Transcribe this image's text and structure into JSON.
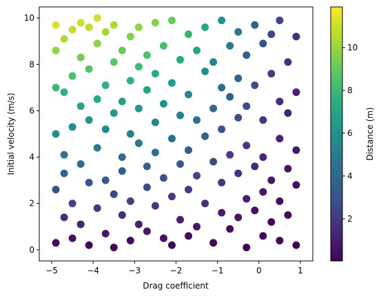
{
  "chart_data": {
    "type": "scatter",
    "x_label": "Drag coefficient",
    "y_label": "Initial velocity (m/s)",
    "colorbar_label": "Distance (m)",
    "colormap": "viridis",
    "xlim": [
      -5.3,
      1.3
    ],
    "ylim": [
      -0.48,
      10.48
    ],
    "clim": [
      0.03,
      11.9
    ],
    "xticks": [
      {
        "value": -5,
        "label": "−5"
      },
      {
        "value": -4,
        "label": "−4"
      },
      {
        "value": -3,
        "label": "−3"
      },
      {
        "value": -2,
        "label": "−2"
      },
      {
        "value": -1,
        "label": "−1"
      },
      0,
      1
    ],
    "yticks": [
      0,
      2,
      4,
      6,
      8,
      10
    ],
    "cticks": [
      2,
      4,
      6,
      8,
      10
    ],
    "series": [
      {
        "x": [
          -4.9,
          -4.9,
          -4.9,
          -4.9,
          -4.9,
          -4.9,
          -4.7,
          -4.7,
          -4.7,
          -4.7,
          -4.7,
          -4.5,
          -4.5,
          -4.5,
          -4.5,
          -4.5,
          -4.3,
          -4.3,
          -4.3,
          -4.3,
          -4.3,
          -4.1,
          -4.1,
          -4.1,
          -4.1,
          -4.1,
          -3.9,
          -3.9,
          -3.9,
          -3.9,
          -3.9,
          -3.7,
          -3.7,
          -3.7,
          -3.7,
          -3.7,
          -3.5,
          -3.5,
          -3.5,
          -3.5,
          -3.5,
          -3.3,
          -3.3,
          -3.3,
          -3.3,
          -3.3,
          -3.1,
          -3.1,
          -3.1,
          -3.1,
          -3.1,
          -2.9,
          -2.9,
          -2.9,
          -2.9,
          -2.9,
          -2.7,
          -2.7,
          -2.7,
          -2.7,
          -2.7,
          -2.5,
          -2.5,
          -2.5,
          -2.5,
          -2.5,
          -2.3,
          -2.3,
          -2.3,
          -2.3,
          -2.1,
          -2.1,
          -2.1,
          -2.1,
          -2.1,
          -1.9,
          -1.9,
          -1.9,
          -1.9,
          -1.7,
          -1.7,
          -1.7,
          -1.7,
          -1.7,
          -1.5,
          -1.5,
          -1.5,
          -1.5,
          -1.3,
          -1.3,
          -1.3,
          -1.3,
          -1.1,
          -1.1,
          -1.1,
          -1.1,
          -0.9,
          -0.9,
          -0.9,
          -0.9,
          -0.9,
          -0.7,
          -0.7,
          -0.7,
          -0.7,
          -0.5,
          -0.5,
          -0.5,
          -0.5,
          -0.5,
          -0.3,
          -0.3,
          -0.3,
          -0.3,
          -0.3,
          -0.1,
          -0.1,
          -0.1,
          -0.1,
          0.1,
          0.1,
          0.1,
          0.1,
          0.1,
          0.3,
          0.3,
          0.3,
          0.3,
          0.5,
          0.5,
          0.5,
          0.5,
          0.5,
          0.7,
          0.7,
          0.7,
          0.7,
          0.9,
          0.9,
          0.9,
          0.9,
          0.9
        ],
        "values": [
          9.7,
          8.6,
          5.0,
          2.6,
          0.3,
          7.0,
          9.1,
          6.8,
          4.1,
          1.4,
          3.3,
          9.5,
          7.5,
          5.3,
          2.0,
          0.5,
          8.3,
          6.2,
          3.7,
          1.1,
          9.8,
          9.6,
          7.8,
          5.6,
          2.9,
          0.2,
          8.9,
          6.5,
          4.4,
          1.8,
          10.0,
          9.4,
          7.1,
          3.0,
          0.7,
          5.2,
          9.7,
          8.1,
          5.9,
          2.4,
          0.1,
          8.6,
          6.4,
          4.0,
          1.5,
          3.4,
          9.2,
          7.3,
          5.0,
          2.1,
          0.4,
          9.6,
          7.9,
          4.6,
          1.1,
          6.1,
          8.4,
          6.9,
          3.6,
          0.8,
          2.7,
          9.8,
          7.6,
          5.5,
          1.9,
          4.2,
          8.8,
          6.3,
          3.1,
          0.5,
          9.9,
          7.2,
          4.8,
          2.3,
          0.2,
          8.2,
          5.8,
          3.7,
          1.3,
          9.3,
          6.7,
          4.3,
          2.6,
          0.6,
          8.6,
          5.6,
          3.2,
          1.0,
          9.6,
          7.7,
          4.9,
          2.0,
          8.1,
          6.1,
          3.8,
          0.3,
          9.9,
          7.0,
          5.2,
          1.6,
          2.9,
          8.8,
          6.6,
          4.1,
          0.9,
          9.4,
          7.4,
          3.3,
          1.4,
          5.7,
          8.4,
          6.2,
          4.5,
          2.2,
          0.1,
          9.7,
          7.1,
          3.6,
          1.7,
          8.9,
          5.6,
          4.0,
          0.6,
          2.5,
          9.3,
          7.6,
          3.0,
          1.2,
          9.9,
          6.4,
          4.8,
          2.1,
          0.4,
          8.1,
          5.9,
          3.5,
          1.5,
          9.2,
          6.8,
          4.3,
          2.8,
          0.2
        ],
        "c": [
          11.2,
          9.9,
          5.8,
          3.0,
          0.35,
          8.0,
          10.4,
          7.8,
          4.7,
          1.6,
          3.8,
          10.8,
          8.5,
          6.0,
          2.3,
          0.6,
          9.3,
          7.0,
          4.2,
          1.2,
          11.0,
          10.7,
          8.7,
          6.2,
          3.2,
          0.2,
          9.8,
          7.2,
          4.8,
          2.0,
          11.0,
          10.2,
          7.7,
          3.3,
          0.8,
          5.6,
          10.4,
          8.7,
          6.3,
          2.6,
          0.1,
          9.1,
          6.8,
          4.2,
          1.6,
          3.6,
          9.6,
          7.6,
          5.2,
          2.2,
          0.4,
          9.8,
          8.1,
          4.7,
          1.1,
          6.2,
          8.4,
          6.9,
          3.6,
          0.8,
          2.7,
          9.6,
          7.4,
          5.4,
          1.9,
          4.1,
          8.4,
          6.0,
          3.0,
          0.5,
          9.1,
          6.6,
          4.4,
          2.1,
          0.2,
          7.2,
          5.1,
          3.3,
          1.1,
          7.8,
          5.6,
          3.6,
          2.2,
          0.5,
          6.9,
          4.5,
          2.6,
          0.8,
          7.2,
          5.8,
          3.7,
          1.5,
          5.5,
          4.1,
          2.6,
          0.2,
          6.1,
          4.3,
          3.2,
          1.0,
          1.8,
          4.9,
          3.7,
          2.3,
          0.5,
          4.7,
          3.7,
          1.7,
          0.7,
          2.9,
          3.7,
          2.7,
          2.0,
          1.0,
          0.05,
          3.7,
          2.7,
          1.4,
          0.6,
          2.9,
          1.8,
          1.3,
          0.2,
          0.8,
          2.6,
          2.1,
          0.8,
          0.3,
          2.4,
          1.5,
          1.2,
          0.5,
          0.1,
          1.7,
          1.2,
          0.7,
          0.3,
          1.6,
          1.2,
          0.8,
          0.5,
          0.05
        ]
      }
    ]
  }
}
